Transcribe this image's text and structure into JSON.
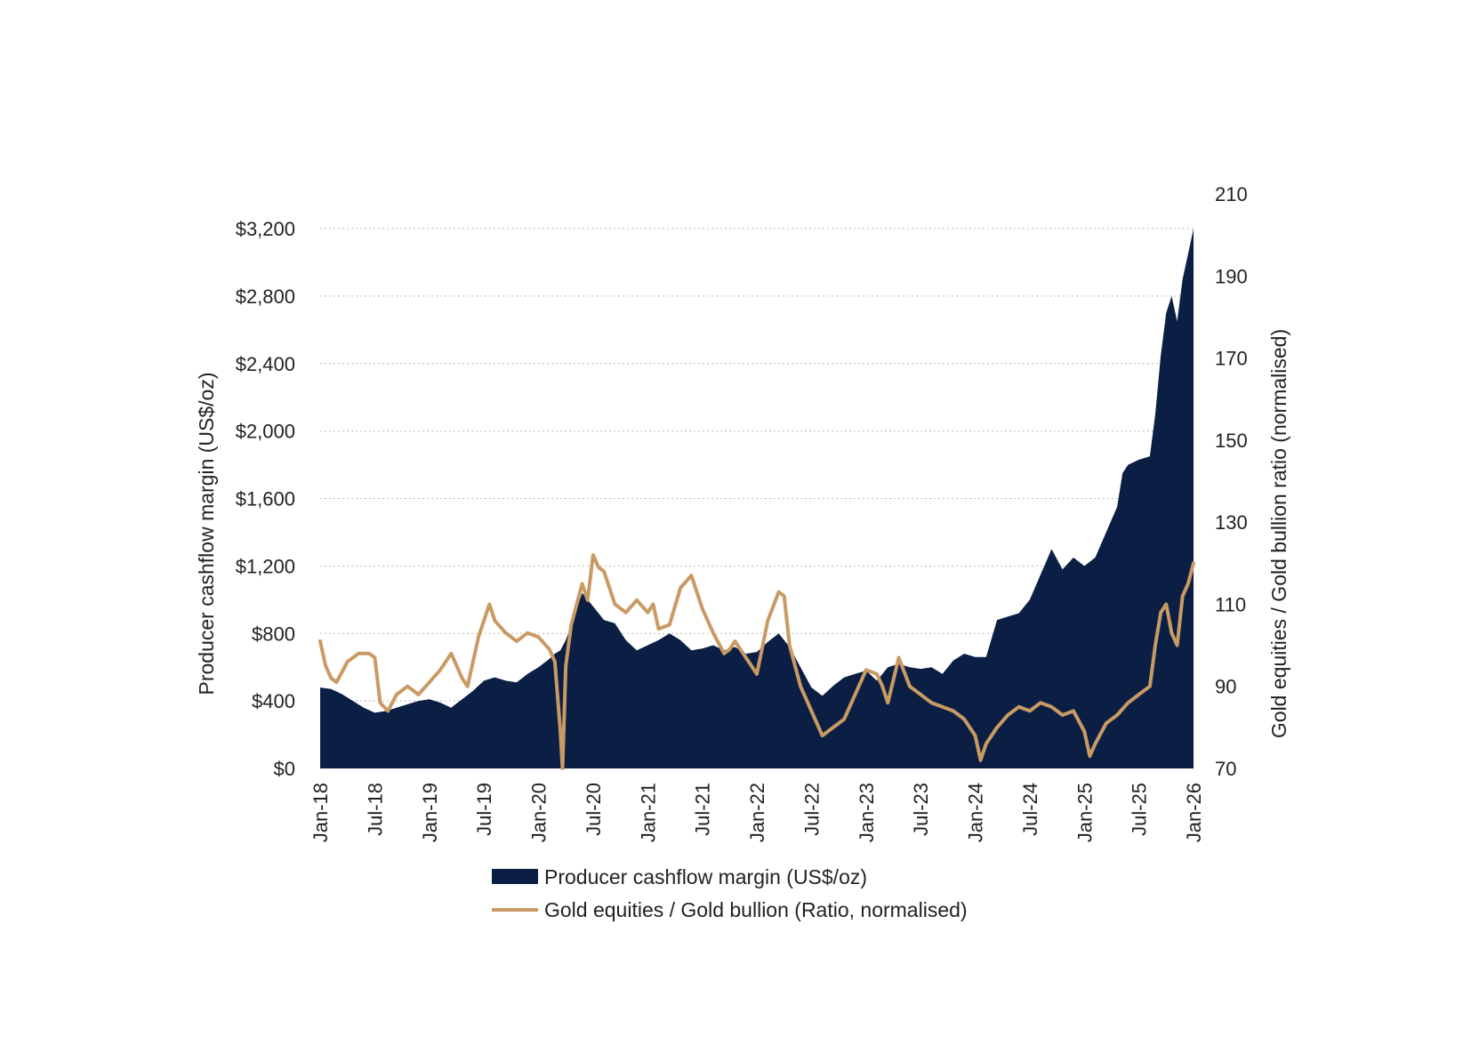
{
  "chart_data": {
    "type": "area+line",
    "title": "",
    "left_axis": {
      "label": "Producer cashflow margin (US$/oz)",
      "ticks": [
        "$0",
        "$400",
        "$800",
        "$1,200",
        "$1,600",
        "$2,000",
        "$2,400",
        "$2,800",
        "$3,200"
      ],
      "ylim": [
        0,
        3200
      ]
    },
    "right_axis": {
      "label": "Gold equities / Gold bullion ratio (normalised)",
      "ticks": [
        "70",
        "90",
        "110",
        "130",
        "150",
        "170",
        "190",
        "210"
      ],
      "ylim": [
        70,
        210
      ]
    },
    "x_axis": {
      "ticks": [
        "Jan-18",
        "Jul-18",
        "Jan-19",
        "Jul-19",
        "Jan-20",
        "Jul-20",
        "Jan-21",
        "Jul-21",
        "Jan-22",
        "Jul-22",
        "Jan-23",
        "Jul-23",
        "Jan-24",
        "Jul-24",
        "Jan-25",
        "Jul-25",
        "Jan-26"
      ],
      "range_years": [
        2018.0,
        2026.0
      ]
    },
    "grid": "horizontal dotted",
    "legend_position": "bottom",
    "series": [
      {
        "name": "Producer cashflow margin (US$/oz)",
        "kind": "area",
        "axis": "left",
        "color": "#0b1f45",
        "x": [
          2018.0,
          2018.1,
          2018.2,
          2018.3,
          2018.4,
          2018.5,
          2018.6,
          2018.7,
          2018.8,
          2018.9,
          2019.0,
          2019.1,
          2019.2,
          2019.3,
          2019.4,
          2019.5,
          2019.6,
          2019.7,
          2019.8,
          2019.9,
          2020.0,
          2020.1,
          2020.15,
          2020.2,
          2020.25,
          2020.3,
          2020.4,
          2020.5,
          2020.55,
          2020.6,
          2020.7,
          2020.8,
          2020.9,
          2021.0,
          2021.1,
          2021.2,
          2021.3,
          2021.4,
          2021.5,
          2021.6,
          2021.7,
          2021.8,
          2021.9,
          2022.0,
          2022.1,
          2022.2,
          2022.3,
          2022.4,
          2022.5,
          2022.6,
          2022.7,
          2022.8,
          2022.9,
          2023.0,
          2023.1,
          2023.2,
          2023.3,
          2023.4,
          2023.5,
          2023.6,
          2023.7,
          2023.8,
          2023.9,
          2024.0,
          2024.1,
          2024.2,
          2024.3,
          2024.4,
          2024.5,
          2024.6,
          2024.7,
          2024.8,
          2024.9,
          2025.0,
          2025.1,
          2025.2,
          2025.3,
          2025.35,
          2025.4,
          2025.5,
          2025.6,
          2025.65,
          2025.7,
          2025.75,
          2025.8,
          2025.85,
          2025.9,
          2025.95,
          2026.0
        ],
        "values": [
          480,
          470,
          440,
          400,
          360,
          330,
          340,
          360,
          380,
          400,
          410,
          390,
          360,
          410,
          460,
          520,
          540,
          520,
          510,
          560,
          600,
          650,
          680,
          700,
          760,
          850,
          1040,
          960,
          920,
          880,
          860,
          760,
          700,
          730,
          760,
          800,
          760,
          700,
          710,
          730,
          700,
          720,
          680,
          690,
          750,
          800,
          720,
          600,
          480,
          430,
          490,
          540,
          560,
          580,
          520,
          600,
          620,
          600,
          590,
          600,
          560,
          640,
          680,
          660,
          660,
          880,
          900,
          920,
          1000,
          1150,
          1300,
          1180,
          1250,
          1200,
          1250,
          1400,
          1550,
          1750,
          1800,
          1830,
          1850,
          2100,
          2450,
          2700,
          2800,
          2650,
          2900,
          3050,
          3200
        ]
      },
      {
        "name": "Gold equities / Gold bullion (Ratio, normalised)",
        "kind": "line",
        "axis": "right",
        "color": "#c99a63",
        "x": [
          2018.0,
          2018.05,
          2018.1,
          2018.15,
          2018.25,
          2018.35,
          2018.45,
          2018.5,
          2018.55,
          2018.62,
          2018.7,
          2018.8,
          2018.9,
          2019.0,
          2019.1,
          2019.2,
          2019.3,
          2019.35,
          2019.45,
          2019.55,
          2019.6,
          2019.7,
          2019.8,
          2019.9,
          2020.0,
          2020.1,
          2020.15,
          2020.2,
          2020.22,
          2020.25,
          2020.3,
          2020.4,
          2020.45,
          2020.5,
          2020.55,
          2020.6,
          2020.7,
          2020.8,
          2020.9,
          2021.0,
          2021.05,
          2021.1,
          2021.2,
          2021.3,
          2021.4,
          2021.5,
          2021.6,
          2021.7,
          2021.75,
          2021.8,
          2021.9,
          2022.0,
          2022.1,
          2022.2,
          2022.25,
          2022.3,
          2022.4,
          2022.5,
          2022.6,
          2022.7,
          2022.8,
          2022.9,
          2023.0,
          2023.1,
          2023.15,
          2023.2,
          2023.3,
          2023.4,
          2023.5,
          2023.6,
          2023.7,
          2023.8,
          2023.9,
          2024.0,
          2024.05,
          2024.1,
          2024.2,
          2024.3,
          2024.4,
          2024.5,
          2024.6,
          2024.7,
          2024.8,
          2024.9,
          2025.0,
          2025.05,
          2025.1,
          2025.2,
          2025.3,
          2025.4,
          2025.5,
          2025.6,
          2025.65,
          2025.7,
          2025.75,
          2025.8,
          2025.85,
          2025.9,
          2025.95,
          2026.0
        ],
        "values": [
          101,
          95,
          92,
          91,
          96,
          98,
          98,
          97,
          86,
          84,
          88,
          90,
          88,
          91,
          94,
          98,
          92,
          90,
          102,
          110,
          106,
          103,
          101,
          103,
          102,
          99,
          96,
          79,
          70,
          95,
          105,
          115,
          111,
          122,
          119,
          118,
          110,
          108,
          111,
          108,
          110,
          104,
          105,
          114,
          117,
          109,
          103,
          98,
          99,
          101,
          97,
          93,
          106,
          113,
          112,
          100,
          90,
          84,
          78,
          80,
          82,
          88,
          94,
          93,
          90,
          86,
          97,
          90,
          88,
          86,
          85,
          84,
          82,
          78,
          72,
          76,
          80,
          83,
          85,
          84,
          86,
          85,
          83,
          84,
          79,
          73,
          76,
          81,
          83,
          86,
          88,
          90,
          100,
          108,
          110,
          103,
          100,
          112,
          115,
          120
        ]
      }
    ]
  }
}
